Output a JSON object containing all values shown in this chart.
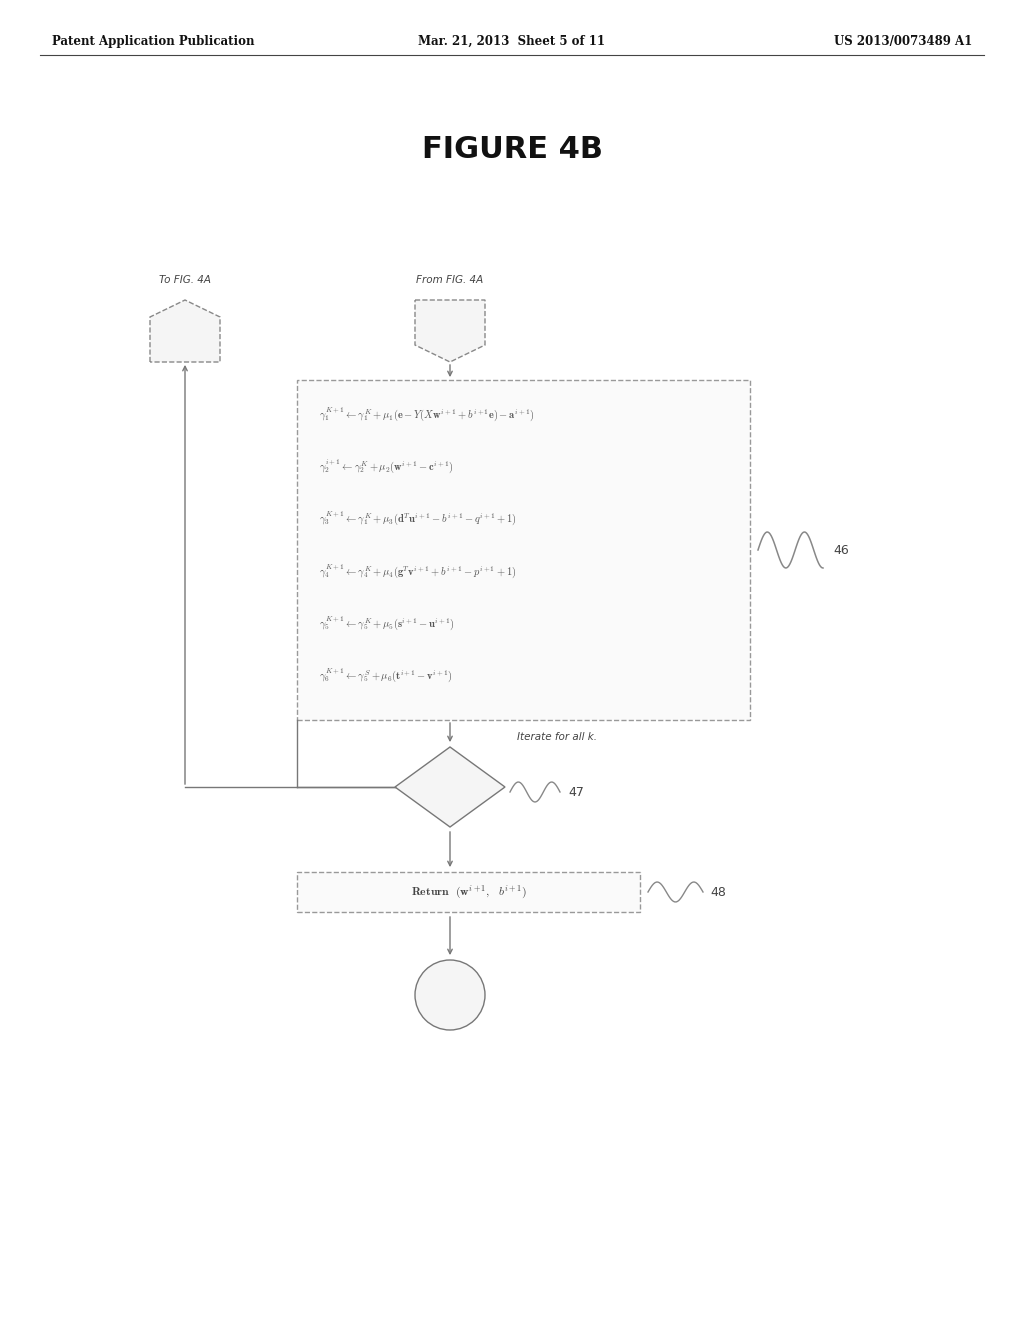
{
  "title": "FIGURE 4B",
  "header_left": "Patent Application Publication",
  "header_mid": "Mar. 21, 2013  Sheet 5 of 11",
  "header_right": "US 2013/0073489 A1",
  "label_to_fig": "To FIG. 4A",
  "label_from_fig": "From FIG. 4A",
  "label_iterate": "Iterate for all k.",
  "label_46": "46",
  "label_47": "47",
  "label_48": "48",
  "bg_color": "#ffffff",
  "text_color": "#333333",
  "box_edge_color": "#aaaaaa",
  "line_color": "#888888"
}
